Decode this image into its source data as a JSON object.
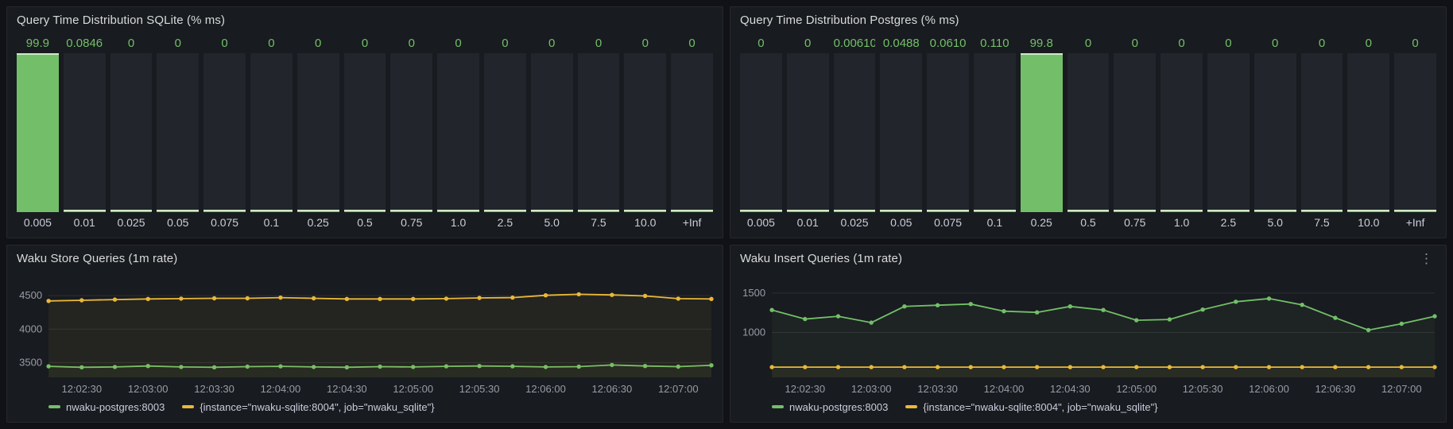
{
  "colors": {
    "green": "#73bf69",
    "yellow": "#eab839",
    "value_text": "#73bf69",
    "page_bg": "#111217",
    "panel_bg": "#181b1f",
    "axis_text": "#ccccdc"
  },
  "icons": {
    "panel_menu": "kebab-vertical"
  },
  "chart_data": [
    {
      "id": "sqlite-histogram",
      "type": "bar",
      "title": "Query Time Distribution SQLite (% ms)",
      "categories": [
        "0.005",
        "0.01",
        "0.025",
        "0.05",
        "0.075",
        "0.1",
        "0.25",
        "0.5",
        "0.75",
        "1.0",
        "2.5",
        "5.0",
        "7.5",
        "10.0",
        "+Inf"
      ],
      "values": [
        99.9,
        0.0846,
        0,
        0,
        0,
        0,
        0,
        0,
        0,
        0,
        0,
        0,
        0,
        0,
        0
      ],
      "value_labels": [
        "99.9",
        "0.0846",
        "0",
        "0",
        "0",
        "0",
        "0",
        "0",
        "0",
        "0",
        "0",
        "0",
        "0",
        "0",
        "0"
      ],
      "ylim": [
        0,
        100
      ],
      "bar_color": "#73bf69",
      "grid": false,
      "legend_position": "none"
    },
    {
      "id": "postgres-histogram",
      "type": "bar",
      "title": "Query Time Distribution Postgres (% ms)",
      "categories": [
        "0.005",
        "0.01",
        "0.025",
        "0.05",
        "0.075",
        "0.1",
        "0.25",
        "0.5",
        "0.75",
        "1.0",
        "2.5",
        "5.0",
        "7.5",
        "10.0",
        "+Inf"
      ],
      "values": [
        0,
        0,
        0.0061,
        0.0488,
        0.061,
        0.11,
        99.8,
        0,
        0,
        0,
        0,
        0,
        0,
        0,
        0
      ],
      "value_labels": [
        "0",
        "0",
        "0.00610",
        "0.0488",
        "0.0610",
        "0.110",
        "99.8",
        "0",
        "0",
        "0",
        "0",
        "0",
        "0",
        "0",
        "0"
      ],
      "ylim": [
        0,
        100
      ],
      "bar_color": "#73bf69",
      "grid": false,
      "legend_position": "none"
    },
    {
      "id": "store-queries",
      "type": "line",
      "title": "Waku Store Queries (1m rate)",
      "x": [
        "12:02:15",
        "12:02:30",
        "12:02:45",
        "12:03:00",
        "12:03:15",
        "12:03:30",
        "12:03:45",
        "12:04:00",
        "12:04:15",
        "12:04:30",
        "12:04:45",
        "12:05:00",
        "12:05:15",
        "12:05:30",
        "12:05:45",
        "12:06:00",
        "12:06:15",
        "12:06:30",
        "12:06:45",
        "12:07:00",
        "12:07:15"
      ],
      "xticks": [
        "12:02:30",
        "12:03:00",
        "12:03:30",
        "12:04:00",
        "12:04:30",
        "12:05:00",
        "12:05:30",
        "12:06:00",
        "12:06:30",
        "12:07:00"
      ],
      "xtick_idx": [
        1,
        3,
        5,
        7,
        9,
        11,
        13,
        15,
        17,
        19
      ],
      "yticks": [
        3500,
        4000,
        4500
      ],
      "ylim": [
        3280,
        4750
      ],
      "grid": true,
      "legend_position": "bottom",
      "series": [
        {
          "name": "nwaku-postgres:8003",
          "color": "#73bf69",
          "values": [
            3445,
            3430,
            3435,
            3450,
            3435,
            3430,
            3440,
            3445,
            3435,
            3430,
            3440,
            3435,
            3445,
            3450,
            3445,
            3435,
            3440,
            3465,
            3450,
            3440,
            3460
          ]
        },
        {
          "name": "{instance=\"nwaku-sqlite:8004\", job=\"nwaku_sqlite\"}",
          "color": "#eab839",
          "values": [
            4420,
            4430,
            4440,
            4450,
            4455,
            4460,
            4460,
            4470,
            4460,
            4450,
            4450,
            4450,
            4455,
            4465,
            4470,
            4505,
            4520,
            4510,
            4495,
            4455,
            4450
          ]
        }
      ]
    },
    {
      "id": "insert-queries",
      "type": "line",
      "title": "Waku Insert Queries (1m rate)",
      "x": [
        "12:02:15",
        "12:02:30",
        "12:02:45",
        "12:03:00",
        "12:03:15",
        "12:03:30",
        "12:03:45",
        "12:04:00",
        "12:04:15",
        "12:04:30",
        "12:04:45",
        "12:05:00",
        "12:05:15",
        "12:05:30",
        "12:05:45",
        "12:06:00",
        "12:06:15",
        "12:06:30",
        "12:06:45",
        "12:07:00",
        "12:07:15"
      ],
      "xticks": [
        "12:02:30",
        "12:03:00",
        "12:03:30",
        "12:04:00",
        "12:04:30",
        "12:05:00",
        "12:05:30",
        "12:06:00",
        "12:06:30",
        "12:07:00"
      ],
      "xtick_idx": [
        1,
        3,
        5,
        7,
        9,
        11,
        13,
        15,
        17,
        19
      ],
      "yticks": [
        1000,
        1500
      ],
      "ylim": [
        430,
        1680
      ],
      "grid": true,
      "legend_position": "bottom",
      "series": [
        {
          "name": "nwaku-postgres:8003",
          "color": "#73bf69",
          "values": [
            1285,
            1170,
            1205,
            1125,
            1330,
            1345,
            1360,
            1270,
            1255,
            1330,
            1285,
            1155,
            1165,
            1290,
            1390,
            1430,
            1350,
            1185,
            1030,
            1110,
            1205
          ]
        },
        {
          "name": "{instance=\"nwaku-sqlite:8004\", job=\"nwaku_sqlite\"}",
          "color": "#eab839",
          "values": [
            560,
            560,
            560,
            560,
            560,
            560,
            560,
            560,
            560,
            560,
            560,
            560,
            560,
            560,
            560,
            560,
            560,
            560,
            560,
            560,
            560
          ]
        }
      ]
    }
  ]
}
